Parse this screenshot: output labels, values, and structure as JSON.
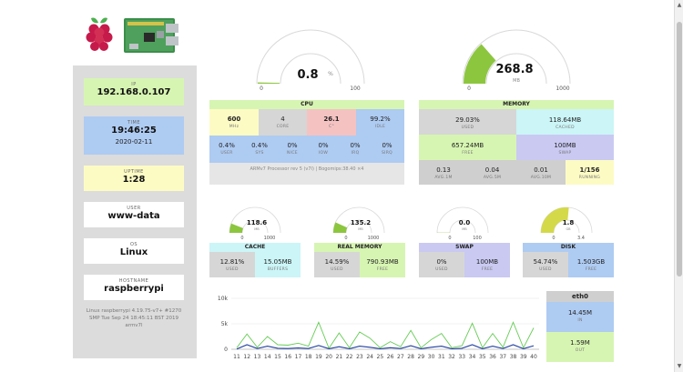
{
  "sidebar": {
    "ip": {
      "label": "IP",
      "value": "192.168.0.107"
    },
    "time": {
      "label": "TIME",
      "value": "19:46:25",
      "date": "2020-02-11"
    },
    "uptime": {
      "label": "UPTIME",
      "value": "1:28"
    },
    "user": {
      "label": "USER",
      "value": "www-data"
    },
    "os": {
      "label": "OS",
      "value": "Linux"
    },
    "hostname": {
      "label": "HOSTNAME",
      "value": "raspberrypi"
    },
    "kernel": "Linux raspberrypi 4.19.75-v7+ #1270 SMP Tue Sep 24 18:45:11 BST 2019 armv7l"
  },
  "gauges": {
    "cpu": {
      "value": "0.8",
      "unit": "%",
      "min": "0",
      "max": "100",
      "fraction": 0.008
    },
    "memory": {
      "value": "268.8",
      "unit": "MB",
      "min": "0",
      "max": "1000",
      "fraction": 0.27
    },
    "cache": {
      "value": "118.6",
      "unit": "MB",
      "min": "0",
      "max": "1000",
      "fraction": 0.12
    },
    "real_memory": {
      "value": "135.2",
      "unit": "MB",
      "min": "0",
      "max": "1000",
      "fraction": 0.135
    },
    "swap": {
      "value": "0.0",
      "unit": "MB",
      "min": "0",
      "max": "100",
      "fraction": 0.0
    },
    "disk": {
      "value": "1.8",
      "unit": "GB",
      "min": "0",
      "max": "3.4",
      "fraction": 0.53
    }
  },
  "cpu": {
    "title": "CPU",
    "freq": {
      "value": "600",
      "label": "MHz"
    },
    "core": {
      "value": "4",
      "label": "CORE"
    },
    "temp": {
      "value": "26.1",
      "label": "C°"
    },
    "idle": {
      "value": "99.2%",
      "label": "IDLE"
    },
    "user": {
      "value": "0.4%",
      "label": "USER"
    },
    "sys": {
      "value": "0.4%",
      "label": "SYS"
    },
    "nice": {
      "value": "0%",
      "label": "NICE"
    },
    "iow": {
      "value": "0%",
      "label": "IOW"
    },
    "irq": {
      "value": "0%",
      "label": "IRQ"
    },
    "sirq": {
      "value": "0%",
      "label": "SIRQ"
    },
    "model": "ARMv7 Processor rev 5 (v7l) | Bogomips:38.40 ×4"
  },
  "memory": {
    "title": "MEMORY",
    "used": {
      "value": "29.03%",
      "label": "USED"
    },
    "cached": {
      "value": "118.64MB",
      "label": "CACHED"
    },
    "free": {
      "value": "657.24MB",
      "label": "FREE"
    },
    "swap": {
      "value": "100MB",
      "label": "SWAP"
    },
    "avg1": {
      "value": "0.13",
      "label": "AVG.1M"
    },
    "avg5": {
      "value": "0.04",
      "label": "AVG.5M"
    },
    "avg10": {
      "value": "0.01",
      "label": "AVG.10M"
    },
    "running": {
      "value": "1/156",
      "label": "RUNNING"
    }
  },
  "cache": {
    "title": "CACHE",
    "used": {
      "value": "12.81%",
      "label": "USED"
    },
    "buffers": {
      "value": "15.05MB",
      "label": "BUFFERS"
    }
  },
  "real_memory": {
    "title": "REAL MEMORY",
    "used": {
      "value": "14.59%",
      "label": "USED"
    },
    "free": {
      "value": "790.93MB",
      "label": "FREE"
    }
  },
  "swap": {
    "title": "SWAP",
    "used": {
      "value": "0%",
      "label": "USED"
    },
    "free": {
      "value": "100MB",
      "label": "FREE"
    }
  },
  "disk": {
    "title": "DISK",
    "used": {
      "value": "54.74%",
      "label": "USED"
    },
    "free": {
      "value": "1.503GB",
      "label": "FREE"
    }
  },
  "net": {
    "title": "eth0",
    "in": {
      "value": "14.45M",
      "label": "IN"
    },
    "out": {
      "value": "1.59M",
      "label": "OUT"
    }
  },
  "colors": {
    "green": "#8cc63f",
    "yellow": "#d4d94a",
    "gauge_bg": "#e6e6e6",
    "line_green": "#66cc55",
    "line_blue": "#1f3fa0"
  },
  "chart_data": {
    "type": "line",
    "x": [
      "11",
      "12",
      "13",
      "14",
      "15",
      "16",
      "17",
      "18",
      "19",
      "20",
      "21",
      "22",
      "23",
      "24",
      "25",
      "26",
      "27",
      "28",
      "29",
      "30",
      "31",
      "32",
      "33",
      "34",
      "35",
      "36",
      "37",
      "38",
      "39",
      "40"
    ],
    "ylim": [
      0,
      10000
    ],
    "yticks": [
      "0",
      "5k",
      "10k"
    ],
    "series": [
      {
        "values": [
          300,
          3000,
          400,
          2500,
          900,
          800,
          1200,
          600,
          5300,
          200,
          3200,
          300,
          3400,
          2200,
          300,
          1500,
          500,
          3700,
          300,
          1900,
          3100,
          300,
          700,
          5100,
          300,
          3100,
          400,
          5300,
          300,
          4200
        ]
      },
      {
        "values": [
          50,
          900,
          150,
          600,
          200,
          150,
          250,
          150,
          750,
          100,
          500,
          100,
          600,
          400,
          100,
          300,
          150,
          700,
          100,
          400,
          600,
          100,
          200,
          900,
          100,
          600,
          150,
          900,
          100,
          700
        ]
      }
    ]
  }
}
